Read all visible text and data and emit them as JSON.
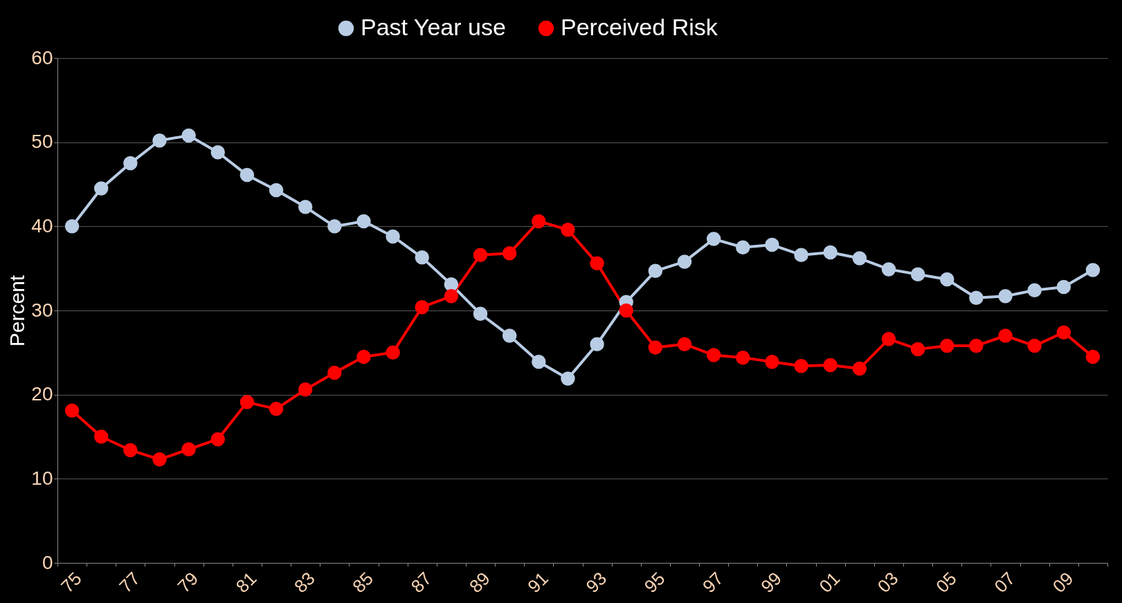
{
  "chart_data": {
    "type": "line",
    "ylabel": "Percent",
    "categories": [
      "75",
      null,
      "77",
      null,
      "79",
      null,
      "81",
      null,
      "83",
      null,
      "85",
      null,
      "87",
      null,
      "89",
      null,
      "91",
      null,
      "93",
      null,
      "95",
      null,
      "97",
      null,
      "99",
      null,
      "01",
      null,
      "03",
      null,
      "05",
      null,
      "07",
      null,
      "09",
      null
    ],
    "series": [
      {
        "name": "Past Year use",
        "color": "#b8cce4",
        "values": [
          40.0,
          44.5,
          47.5,
          50.2,
          50.8,
          48.8,
          46.1,
          44.3,
          42.3,
          40.0,
          40.6,
          38.8,
          36.3,
          33.1,
          29.6,
          27.0,
          23.9,
          21.9,
          26.0,
          31.0,
          34.7,
          35.8,
          38.5,
          37.5,
          37.8,
          36.6,
          36.9,
          36.2,
          34.9,
          34.3,
          33.7,
          31.5,
          31.7,
          32.4,
          32.8,
          34.8
        ]
      },
      {
        "name": "Perceived Risk",
        "color": "#ff0000",
        "values": [
          18.1,
          15.0,
          13.4,
          12.3,
          13.5,
          14.7,
          19.1,
          18.3,
          20.6,
          22.6,
          24.5,
          25.0,
          30.4,
          31.7,
          36.6,
          36.8,
          40.6,
          39.6,
          35.6,
          30.0,
          25.6,
          26.0,
          24.7,
          24.4,
          23.9,
          23.4,
          23.5,
          23.1,
          26.6,
          25.4,
          25.8,
          25.8,
          27.0,
          25.8,
          27.4,
          24.5
        ]
      }
    ],
    "ylim": [
      0,
      60
    ],
    "yticks": [
      0,
      10,
      20,
      30,
      40,
      50,
      60
    ],
    "grid": "y",
    "legend": "top",
    "marker": "circle",
    "line_style": "solid"
  }
}
